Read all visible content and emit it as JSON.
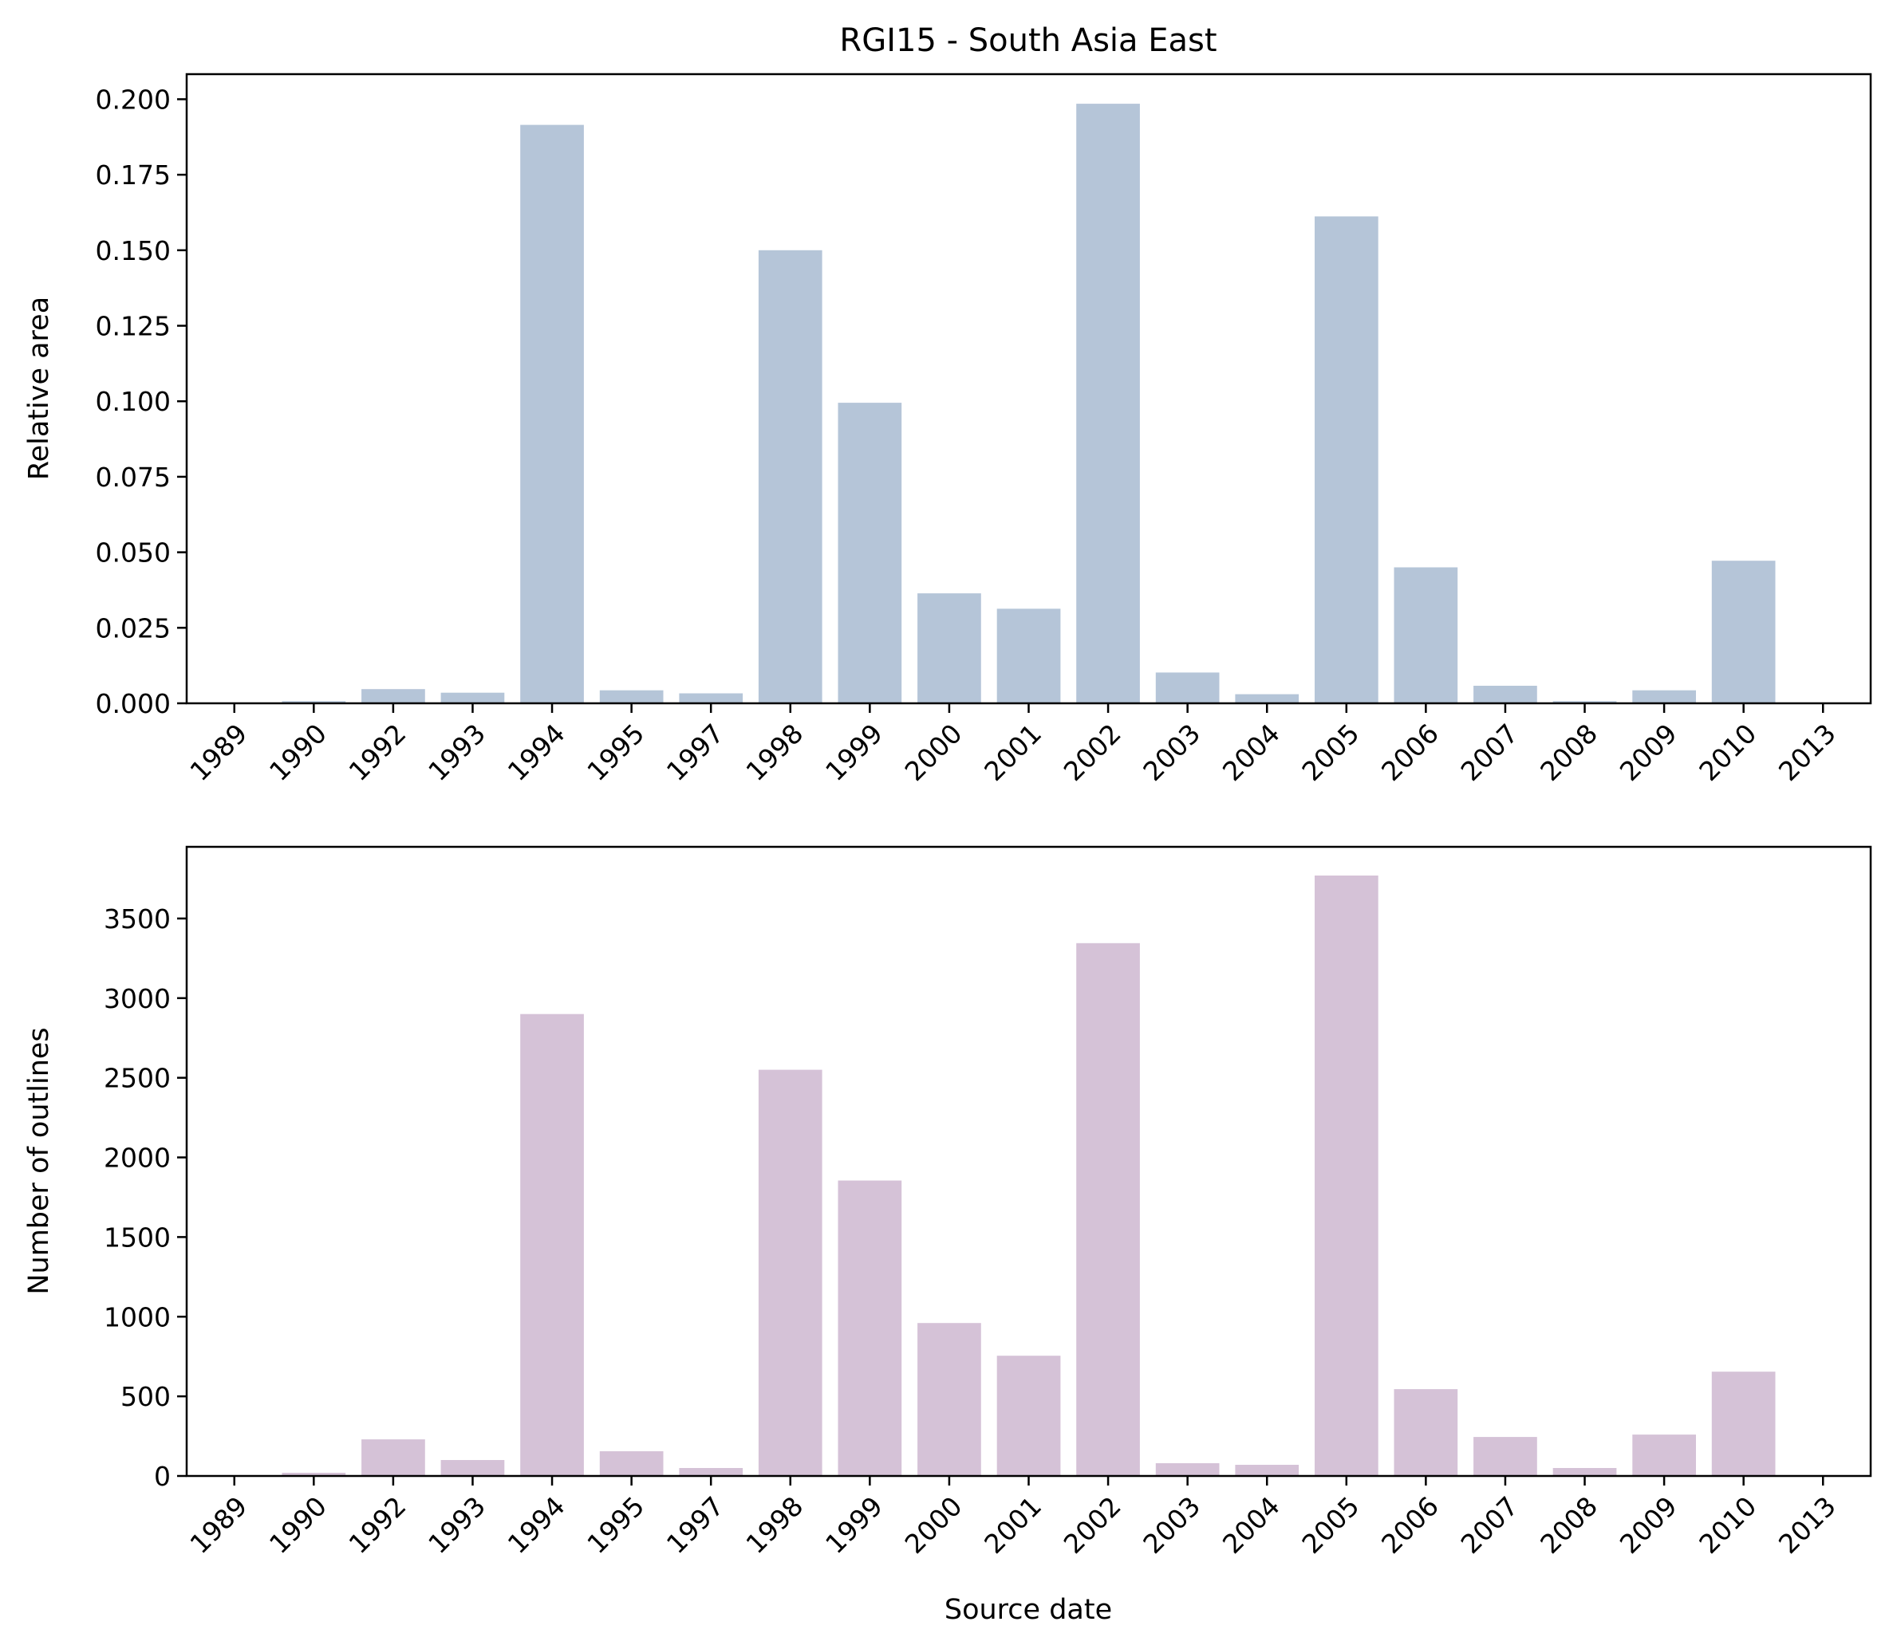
{
  "chart_data": [
    {
      "type": "bar",
      "title": "RGI15 - South Asia East",
      "xlabel": "",
      "ylabel": "Relative area",
      "categories": [
        "1989",
        "1990",
        "1992",
        "1993",
        "1994",
        "1995",
        "1997",
        "1998",
        "1999",
        "2000",
        "2001",
        "2002",
        "2003",
        "2004",
        "2005",
        "2006",
        "2007",
        "2008",
        "2009",
        "2010",
        "2013"
      ],
      "values": [
        0.0002,
        0.0007,
        0.0047,
        0.0035,
        0.1915,
        0.0043,
        0.0033,
        0.15,
        0.0995,
        0.0364,
        0.0313,
        0.1985,
        0.0102,
        0.003,
        0.1612,
        0.045,
        0.0058,
        0.0007,
        0.0043,
        0.0472,
        0.0001
      ],
      "ylim": [
        0,
        0.2083
      ],
      "yticks": [
        "0.000",
        "0.025",
        "0.050",
        "0.075",
        "0.100",
        "0.125",
        "0.150",
        "0.175",
        "0.200"
      ],
      "bar_color": "#b5c5d8",
      "grid": false
    },
    {
      "type": "bar",
      "title": "",
      "xlabel": "Source date",
      "ylabel": "Number of outlines",
      "categories": [
        "1989",
        "1990",
        "1992",
        "1993",
        "1994",
        "1995",
        "1997",
        "1998",
        "1999",
        "2000",
        "2001",
        "2002",
        "2003",
        "2004",
        "2005",
        "2006",
        "2007",
        "2008",
        "2009",
        "2010",
        "2013"
      ],
      "values": [
        5,
        20,
        230,
        100,
        2900,
        155,
        50,
        2550,
        1855,
        960,
        755,
        3345,
        80,
        70,
        3770,
        545,
        245,
        50,
        260,
        655,
        5
      ],
      "ylim": [
        0,
        3950
      ],
      "yticks": [
        "0",
        "500",
        "1000",
        "1500",
        "2000",
        "2500",
        "3000",
        "3500"
      ],
      "bar_color": "#d5c2d7",
      "grid": false
    }
  ]
}
